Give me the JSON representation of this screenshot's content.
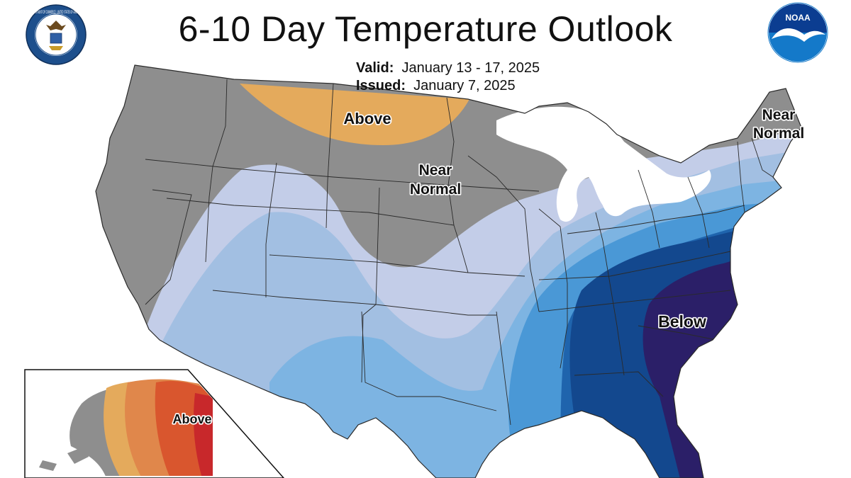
{
  "title": "6-10 Day Temperature Outlook",
  "valid_label": "Valid:",
  "valid_value": "January 13 - 17, 2025",
  "issued_label": "Issued:",
  "issued_value": "January 7, 2025",
  "seal_text": "DEPARTMENT OF COMMERCE · UNITED STATES OF AMERICA",
  "noaa_text": "NOAA",
  "map_labels": {
    "above_north": "Above",
    "near_normal_center_1": "Near",
    "near_normal_center_2": "Normal",
    "near_normal_ne_1": "Near",
    "near_normal_ne_2": "Normal",
    "below": "Below",
    "alaska_above": "Above"
  },
  "colors": {
    "near_normal": "#8e8e8e",
    "above_light": "#e4aa5c",
    "above_mid": "#e0874b",
    "above_high": "#d9562e",
    "above_max": "#c8282b",
    "below_1": "#c3cde8",
    "below_2": "#a2bfe2",
    "below_3": "#7db4e2",
    "below_4": "#4a98d6",
    "below_5": "#1f64ad",
    "below_6": "#13488e",
    "below_7": "#2b1f68",
    "water": "#ffffff",
    "noaa_blue": "#1479c9"
  }
}
